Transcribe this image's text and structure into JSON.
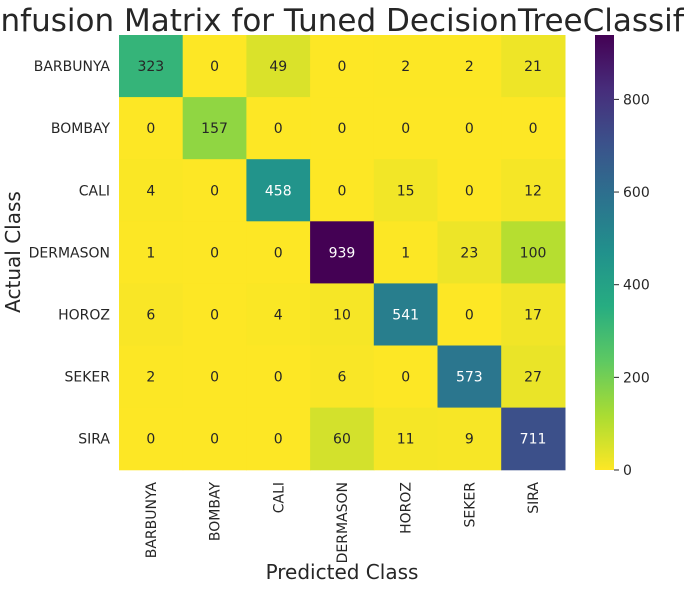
{
  "chart_data": {
    "type": "heatmap",
    "title": "Confusion Matrix for Tuned DecisionTreeClassifier",
    "xlabel": "Predicted Class",
    "ylabel": "Actual Class",
    "x_categories": [
      "BARBUNYA",
      "BOMBAY",
      "CALI",
      "DERMASON",
      "HOROZ",
      "SEKER",
      "SIRA"
    ],
    "y_categories": [
      "BARBUNYA",
      "BOMBAY",
      "CALI",
      "DERMASON",
      "HOROZ",
      "SEKER",
      "SIRA"
    ],
    "values": [
      [
        323,
        0,
        49,
        0,
        2,
        2,
        21
      ],
      [
        0,
        157,
        0,
        0,
        0,
        0,
        0
      ],
      [
        4,
        0,
        458,
        0,
        15,
        0,
        12
      ],
      [
        1,
        0,
        0,
        939,
        1,
        23,
        100
      ],
      [
        6,
        0,
        4,
        10,
        541,
        0,
        17
      ],
      [
        2,
        0,
        0,
        6,
        0,
        573,
        27
      ],
      [
        0,
        0,
        0,
        60,
        11,
        9,
        711
      ]
    ],
    "colorscale": "viridis_r",
    "color_range": [
      0,
      939
    ],
    "colorbar_ticks": [
      0,
      200,
      400,
      600,
      800
    ],
    "colorbar_tick_labels": [
      "0",
      "200",
      "400",
      "600",
      "800"
    ]
  }
}
